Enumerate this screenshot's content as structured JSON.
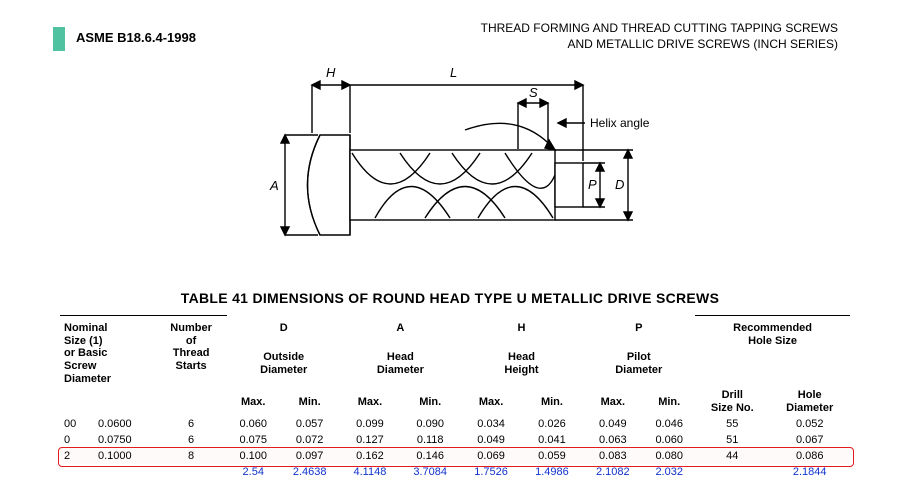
{
  "header": {
    "spec_id": "ASME B18.6.4-1998",
    "title_line1": "THREAD FORMING AND THREAD CUTTING TAPPING SCREWS",
    "title_line2": "AND METALLIC DRIVE SCREWS (INCH SERIES)",
    "accent_color": "#4fc3a1"
  },
  "diagram": {
    "labels": {
      "H": "H",
      "L": "L",
      "S": "S",
      "A": "A",
      "P": "P",
      "D": "D",
      "helix": "Helix angle"
    },
    "stroke": "#000000",
    "stroke_width": 1.4
  },
  "table": {
    "title": "TABLE 41   DIMENSIONS OF ROUND HEAD TYPE U METALLIC DRIVE SCREWS",
    "group_letters": {
      "D": "D",
      "A": "A",
      "H": "H",
      "P": "P"
    },
    "headers": {
      "nominal": "Nominal\nSize (1)\nor Basic\nScrew\nDiameter",
      "starts": "Number\nof\nThread\nStarts",
      "outside": "Outside\nDiameter",
      "headdia": "Head\nDiameter",
      "headht": "Head\nHeight",
      "pilot": "Pilot\nDiameter",
      "recommended": "Recommended\nHole Size",
      "drill": "Drill\nSize No.",
      "holedia": "Hole\nDiameter",
      "max": "Max.",
      "min": "Min."
    },
    "rows": [
      {
        "code": "00",
        "nominal": "0.0600",
        "starts": "6",
        "D_max": "0.060",
        "D_min": "0.057",
        "A_max": "0.099",
        "A_min": "0.090",
        "H_max": "0.034",
        "H_min": "0.026",
        "P_max": "0.049",
        "P_min": "0.046",
        "drill": "55",
        "hole": "0.052"
      },
      {
        "code": "0",
        "nominal": "0.0750",
        "starts": "6",
        "D_max": "0.075",
        "D_min": "0.072",
        "A_max": "0.127",
        "A_min": "0.118",
        "H_max": "0.049",
        "H_min": "0.041",
        "P_max": "0.063",
        "P_min": "0.060",
        "drill": "51",
        "hole": "0.067"
      },
      {
        "code": "2",
        "nominal": "0.1000",
        "starts": "8",
        "D_max": "0.100",
        "D_min": "0.097",
        "A_max": "0.162",
        "A_min": "0.146",
        "H_max": "0.069",
        "H_min": "0.059",
        "P_max": "0.083",
        "P_min": "0.080",
        "drill": "44",
        "hole": "0.086"
      }
    ],
    "highlight_row_index": 2,
    "highlight_color": "#e41a1c",
    "mm_row": {
      "color": "#1033cc",
      "values": {
        "D_max": "2.54",
        "D_min": "2.4638",
        "A_max": "4.1148",
        "A_min": "3.7084",
        "H_max": "1.7526",
        "H_min": "1.4986",
        "P_max": "2.1082",
        "P_min": "2.032",
        "hole": "2.1844"
      }
    }
  }
}
